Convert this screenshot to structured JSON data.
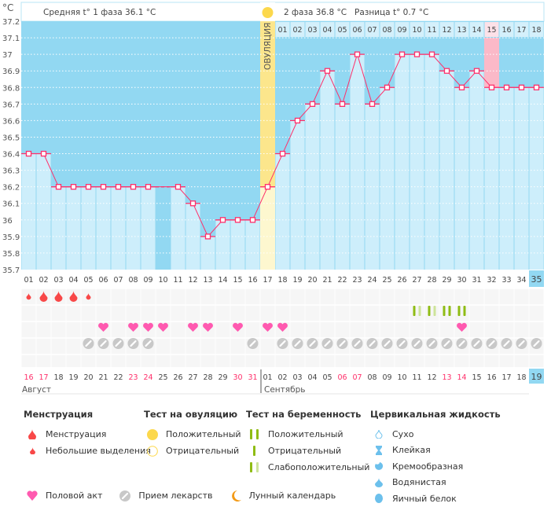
{
  "header": {
    "unit": "°C",
    "phase1": "Средняя t° 1 фаза  36.1 °C",
    "phase2": "2 фаза  36.8 °C",
    "diff": "Разница t° 0.7 °C",
    "ovulation_label": "ОВУЛЯЦИЯ"
  },
  "chart_data": {
    "type": "line",
    "ylim": [
      35.7,
      37.2
    ],
    "yticks": [
      "37.2",
      "37.1",
      "37",
      "36.9",
      "36.8",
      "36.7",
      "36.6",
      "36.5",
      "36.4",
      "36.3",
      "36.2",
      "36.1",
      "36",
      "35.9",
      "35.8",
      "35.7"
    ],
    "cycle_days": [
      "01",
      "02",
      "03",
      "04",
      "05",
      "06",
      "07",
      "08",
      "09",
      "10",
      "11",
      "12",
      "13",
      "14",
      "15",
      "16",
      "17",
      "18",
      "19",
      "20",
      "21",
      "22",
      "23",
      "24",
      "25",
      "26",
      "27",
      "28",
      "29",
      "30",
      "31",
      "32",
      "33",
      "34",
      "35"
    ],
    "temperatures": [
      36.4,
      36.4,
      36.2,
      36.2,
      36.2,
      36.2,
      36.2,
      36.2,
      36.2,
      null,
      36.2,
      36.1,
      35.9,
      36.0,
      36.0,
      36.0,
      36.2,
      36.4,
      36.6,
      36.7,
      36.9,
      36.7,
      37.0,
      36.7,
      36.8,
      37.0,
      37.0,
      37.0,
      36.9,
      36.8,
      36.9,
      36.8,
      36.8,
      36.8,
      36.8
    ],
    "ovulation_day": 17,
    "phase2_days": [
      "01",
      "02",
      "03",
      "04",
      "05",
      "06",
      "07",
      "08",
      "09",
      "10",
      "11",
      "12",
      "13",
      "14",
      "15",
      "16",
      "17",
      "18"
    ],
    "highlight_phase2_day": 15,
    "current_day": 35
  },
  "calendar": {
    "dates": [
      "16",
      "17",
      "18",
      "19",
      "20",
      "21",
      "22",
      "23",
      "24",
      "25",
      "26",
      "27",
      "28",
      "29",
      "30",
      "31",
      "01",
      "02",
      "03",
      "04",
      "05",
      "06",
      "07",
      "08",
      "09",
      "10",
      "11",
      "12",
      "13",
      "14",
      "15",
      "16",
      "17",
      "18",
      "19"
    ],
    "weekend": [
      true,
      true,
      false,
      false,
      false,
      false,
      false,
      true,
      true,
      false,
      false,
      false,
      false,
      false,
      true,
      true,
      false,
      false,
      false,
      false,
      false,
      true,
      true,
      false,
      false,
      false,
      false,
      false,
      true,
      true,
      false,
      false,
      false,
      false,
      false
    ],
    "month1": "Август",
    "month2": "Сентябрь",
    "menstruation": {
      "1": "small",
      "2": "heavy",
      "3": "heavy",
      "4": "heavy",
      "5": "small"
    },
    "pregnancy_tests": {
      "27": "weak",
      "28": "weak",
      "29": "positive",
      "30": "positive"
    },
    "intercourse": [
      6,
      8,
      9,
      10,
      12,
      13,
      15,
      17,
      18,
      30
    ],
    "medication": [
      5,
      6,
      7,
      8,
      9,
      16,
      18,
      19,
      20,
      21,
      22,
      23,
      24,
      25,
      26,
      27,
      28,
      29,
      30,
      31,
      32,
      33,
      34,
      35
    ]
  },
  "colors": {
    "dark": "#92d8f2",
    "light": "#cdeefb",
    "line": "#ff2f6a",
    "ovulation": "#fce68c",
    "highlight": "#fbb9c8",
    "heart": "#ff5ab0",
    "pill": "#c8c8c8",
    "blood": "#f84848",
    "test": "#8fbc14",
    "test_weak": "#cde49a"
  },
  "legend": {
    "menstruation": {
      "title": "Менструация",
      "items": [
        "Менструация",
        "Небольшие выделения"
      ]
    },
    "ovulation_test": {
      "title": "Тест на овуляцию",
      "items": [
        "Положительный",
        "Отрицательный"
      ]
    },
    "pregnancy_test": {
      "title": "Тест на беременность",
      "items": [
        "Положительный",
        "Отрицательный",
        "Слабоположительный"
      ]
    },
    "cervical": {
      "title": "Цервикальная жидкость",
      "items": [
        "Сухо",
        "Клейкая",
        "Кремообразная",
        "Водянистая",
        "Яичный белок"
      ]
    },
    "other": [
      "Половой акт",
      "Прием лекарств",
      "Лунный календарь"
    ]
  }
}
